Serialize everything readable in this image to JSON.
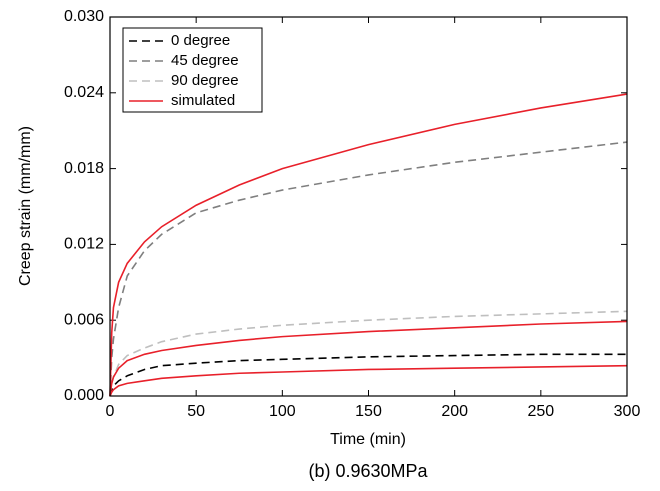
{
  "chart_data": {
    "type": "line",
    "caption": "(b) 0.9630MPa",
    "xlabel": "Time (min)",
    "ylabel": "Creep strain (mm/mm)",
    "x": [
      0,
      1,
      2,
      5,
      10,
      20,
      30,
      50,
      75,
      100,
      150,
      200,
      250,
      300
    ],
    "series": [
      {
        "name": "0 degree",
        "color": "#000000",
        "linestyle": "dashed",
        "values": [
          0,
          0.0005,
          0.0008,
          0.0012,
          0.0016,
          0.0021,
          0.0024,
          0.0026,
          0.0028,
          0.0029,
          0.0031,
          0.0032,
          0.0033,
          0.0033
        ]
      },
      {
        "name": "45 degree",
        "color": "#7f7f7f",
        "linestyle": "dashed",
        "values": [
          0,
          0.003,
          0.0045,
          0.007,
          0.0095,
          0.0115,
          0.0128,
          0.0145,
          0.0155,
          0.0163,
          0.0175,
          0.0185,
          0.0193,
          0.0201
        ]
      },
      {
        "name": "90 degree",
        "color": "#bfbfbf",
        "linestyle": "dashed",
        "values": [
          0,
          0.001,
          0.0015,
          0.0025,
          0.0032,
          0.0038,
          0.0043,
          0.0049,
          0.0053,
          0.0056,
          0.006,
          0.0063,
          0.0065,
          0.0067
        ]
      },
      {
        "name": "simulated",
        "color": "#e8202a",
        "linestyle": "solid",
        "values": [
          0,
          0.005,
          0.007,
          0.009,
          0.0105,
          0.0122,
          0.0134,
          0.0151,
          0.0167,
          0.018,
          0.0199,
          0.0215,
          0.0228,
          0.0239
        ]
      },
      {
        "name": "simulated",
        "color": "#e8202a",
        "linestyle": "solid",
        "values": [
          0,
          0.001,
          0.0015,
          0.0022,
          0.0028,
          0.0033,
          0.0036,
          0.004,
          0.0044,
          0.0047,
          0.0051,
          0.0054,
          0.0057,
          0.0059
        ]
      },
      {
        "name": "simulated",
        "color": "#e8202a",
        "linestyle": "solid",
        "values": [
          0,
          0.0003,
          0.0005,
          0.0008,
          0.001,
          0.0012,
          0.0014,
          0.0016,
          0.0018,
          0.0019,
          0.0021,
          0.0022,
          0.0023,
          0.0024
        ]
      }
    ],
    "xlim": [
      0,
      300
    ],
    "xticks": [
      0,
      50,
      100,
      150,
      200,
      250,
      300
    ],
    "ylim": [
      0,
      0.03
    ],
    "yticks": [
      {
        "value": 0,
        "label": "0.000"
      },
      0.006,
      0.012,
      0.018,
      0.024,
      {
        "value": 0.03,
        "label": "0.030"
      }
    ],
    "legend": "upper left",
    "grid": false
  }
}
